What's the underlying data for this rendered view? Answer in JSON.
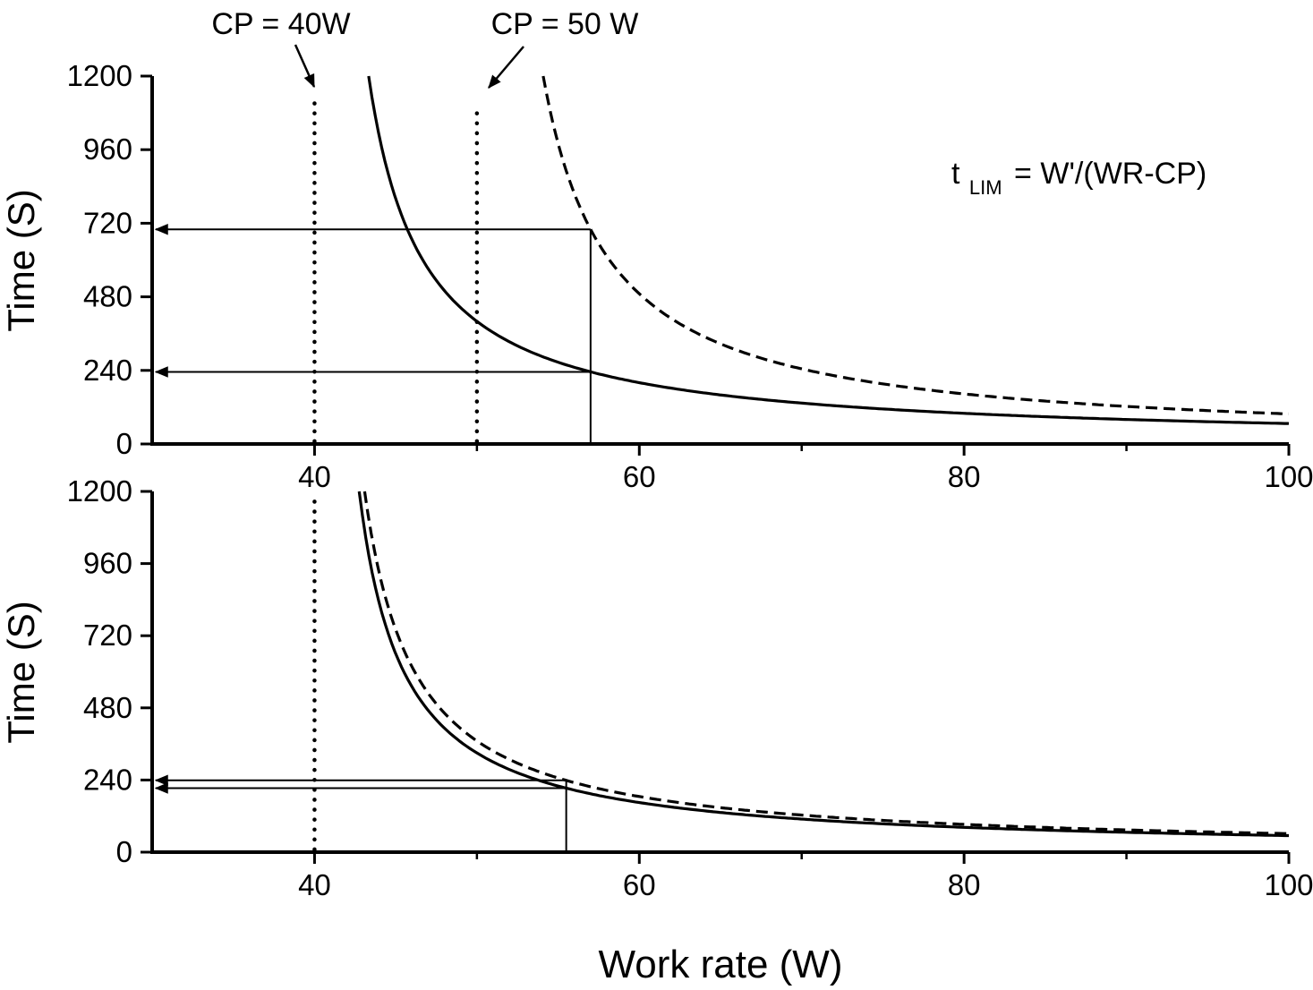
{
  "figure": {
    "background": "#ffffff",
    "ink_color": "#000000"
  },
  "chart_data": [
    {
      "panel": "top",
      "type": "line",
      "xlim": [
        30,
        100
      ],
      "ylim": [
        0,
        1200
      ],
      "xticks": [
        40,
        60,
        80,
        100
      ],
      "xminor_ticks": [
        50,
        70,
        90
      ],
      "yticks": [
        0,
        240,
        480,
        720,
        960,
        1200
      ],
      "xlabel": "",
      "ylabel": "Time (S)",
      "series": [
        {
          "name": "CP = 40W",
          "line_style": "solid",
          "cp_w": 40,
          "w_prime_j": 4000
        },
        {
          "name": "CP = 50 W",
          "line_style": "dashed",
          "cp_w": 50,
          "w_prime_j": 4900
        }
      ],
      "cp_lines": [
        {
          "x": 40,
          "label": "CP = 40W",
          "y_top": 1140
        },
        {
          "x": 50,
          "label": "CP = 50 W",
          "y_top": 1100
        }
      ],
      "guides": {
        "work_rate": 57,
        "time_values": [
          700,
          235
        ]
      },
      "annotation": {
        "t_base": "t",
        "subscript": "LIM",
        "rest": " = W'/(WR-CP)"
      }
    },
    {
      "panel": "bottom",
      "type": "line",
      "xlim": [
        30,
        100
      ],
      "ylim": [
        0,
        1200
      ],
      "xticks": [
        40,
        60,
        80,
        100
      ],
      "xminor_ticks": [
        50,
        70,
        90
      ],
      "yticks": [
        0,
        240,
        480,
        720,
        960,
        1200
      ],
      "xlabel": "Work rate (W)",
      "ylabel": "Time (S)",
      "series": [
        {
          "line_style": "solid",
          "cp_w": 40,
          "w_prime_j": 3300
        },
        {
          "line_style": "dashed",
          "cp_w": 40,
          "w_prime_j": 3700
        }
      ],
      "cp_lines": [
        {
          "x": 40,
          "y_top": 1170
        }
      ],
      "guides": {
        "work_rate": 55.5,
        "time_values": [
          239,
          213
        ]
      }
    }
  ]
}
